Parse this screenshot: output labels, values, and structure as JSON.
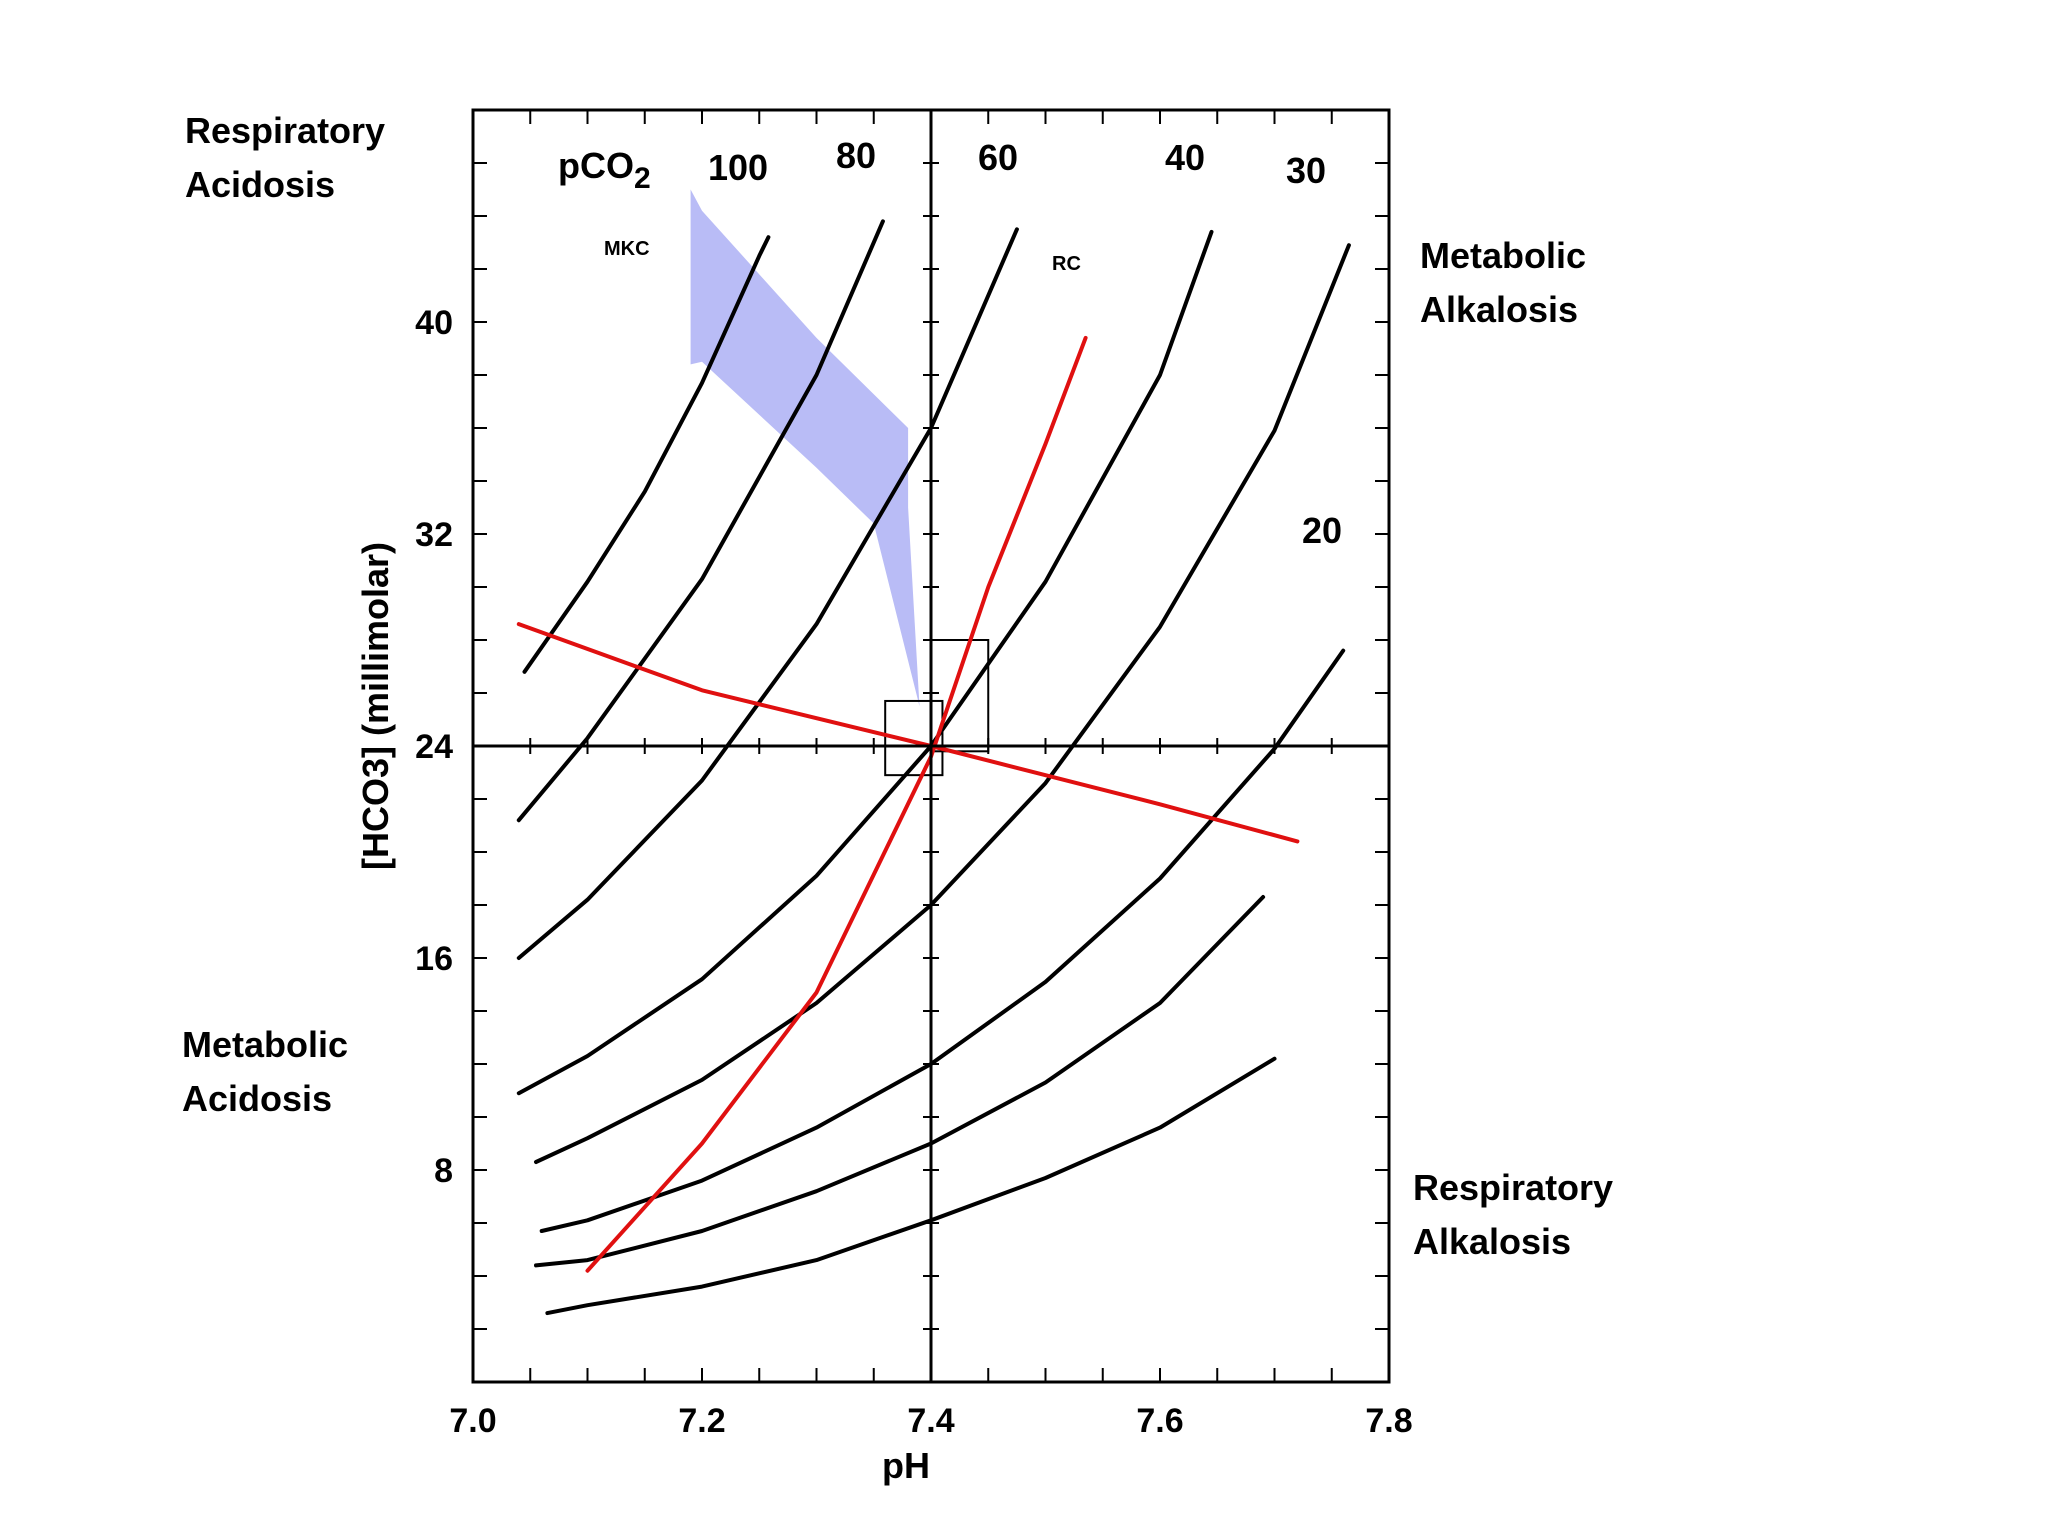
{
  "chart_data": {
    "type": "line",
    "xlabel": "pH",
    "ylabel": "[HCO3] (millimolar)",
    "xlim": [
      7.0,
      7.8
    ],
    "ylim": [
      0,
      48
    ],
    "x_ticks": [
      "7.0",
      "7.2",
      "7.4",
      "7.6",
      "7.8"
    ],
    "x_tick_values": [
      7.0,
      7.2,
      7.4,
      7.6,
      7.8
    ],
    "y_ticks": [
      "8",
      "16",
      "24",
      "32",
      "40"
    ],
    "y_tick_values": [
      8,
      16,
      24,
      32,
      40
    ],
    "reference_lines": {
      "x": 7.4,
      "y": 24
    },
    "pco2_title_main": "pCO",
    "pco2_title_sub": "2",
    "isobars": [
      {
        "name": "100",
        "points": [
          [
            7.045,
            26.8
          ],
          [
            7.1,
            30.2
          ],
          [
            7.15,
            33.6
          ],
          [
            7.2,
            37.7
          ],
          [
            7.25,
            42.5
          ],
          [
            7.258,
            43.2
          ]
        ]
      },
      {
        "name": "80",
        "points": [
          [
            7.04,
            21.2
          ],
          [
            7.1,
            24.3
          ],
          [
            7.2,
            30.3
          ],
          [
            7.3,
            38.0
          ],
          [
            7.358,
            43.8
          ]
        ]
      },
      {
        "name": "60",
        "points": [
          [
            7.04,
            16.0
          ],
          [
            7.1,
            18.2
          ],
          [
            7.2,
            22.7
          ],
          [
            7.3,
            28.6
          ],
          [
            7.4,
            36.0
          ],
          [
            7.475,
            43.5
          ]
        ]
      },
      {
        "name": "40",
        "points": [
          [
            7.04,
            10.9
          ],
          [
            7.1,
            12.3
          ],
          [
            7.2,
            15.2
          ],
          [
            7.3,
            19.1
          ],
          [
            7.4,
            24.0
          ],
          [
            7.5,
            30.2
          ],
          [
            7.6,
            38.0
          ],
          [
            7.645,
            43.4
          ]
        ]
      },
      {
        "name": "30",
        "points": [
          [
            7.055,
            8.3
          ],
          [
            7.1,
            9.2
          ],
          [
            7.2,
            11.4
          ],
          [
            7.3,
            14.3
          ],
          [
            7.4,
            18.0
          ],
          [
            7.5,
            22.6
          ],
          [
            7.6,
            28.5
          ],
          [
            7.7,
            35.9
          ],
          [
            7.765,
            42.9
          ]
        ]
      },
      {
        "name": "20",
        "points": [
          [
            7.06,
            5.7
          ],
          [
            7.1,
            6.1
          ],
          [
            7.2,
            7.6
          ],
          [
            7.3,
            9.6
          ],
          [
            7.4,
            12.0
          ],
          [
            7.5,
            15.1
          ],
          [
            7.6,
            19.0
          ],
          [
            7.7,
            23.9
          ],
          [
            7.76,
            27.6
          ]
        ]
      },
      {
        "name": "",
        "points": [
          [
            7.055,
            4.4
          ],
          [
            7.1,
            4.6
          ],
          [
            7.2,
            5.7
          ],
          [
            7.3,
            7.2
          ],
          [
            7.4,
            9.0
          ],
          [
            7.5,
            11.3
          ],
          [
            7.6,
            14.3
          ],
          [
            7.69,
            18.3
          ]
        ]
      },
      {
        "name": "",
        "points": [
          [
            7.065,
            2.6
          ],
          [
            7.1,
            2.9
          ],
          [
            7.2,
            3.6
          ],
          [
            7.3,
            4.6
          ],
          [
            7.4,
            6.1
          ],
          [
            7.5,
            7.7
          ],
          [
            7.6,
            9.6
          ],
          [
            7.7,
            12.2
          ]
        ]
      }
    ],
    "red_lines": [
      {
        "name": "",
        "points": [
          [
            7.04,
            28.6
          ],
          [
            7.2,
            26.1
          ],
          [
            7.4,
            24.0
          ],
          [
            7.6,
            21.8
          ],
          [
            7.72,
            20.4
          ]
        ]
      },
      {
        "name": "RC",
        "points": [
          [
            7.1,
            4.2
          ],
          [
            7.2,
            9.0
          ],
          [
            7.3,
            14.7
          ],
          [
            7.4,
            23.6
          ],
          [
            7.45,
            30.0
          ],
          [
            7.5,
            35.4
          ],
          [
            7.535,
            39.4
          ]
        ]
      }
    ],
    "shaded_band": {
      "label": "MKC",
      "color": "#b9bcf6",
      "upper": [
        [
          7.19,
          45.0
        ],
        [
          7.2,
          44.2
        ],
        [
          7.3,
          39.4
        ],
        [
          7.38,
          36.0
        ],
        [
          7.38,
          33.0
        ],
        [
          7.39,
          25.5
        ]
      ],
      "lower": [
        [
          7.39,
          25.5
        ],
        [
          7.35,
          32.4
        ],
        [
          7.3,
          34.5
        ],
        [
          7.2,
          38.5
        ],
        [
          7.19,
          38.4
        ]
      ]
    },
    "small_boxes": [
      {
        "x": [
          7.36,
          7.41
        ],
        "y": [
          22.9,
          25.7
        ]
      },
      {
        "x": [
          7.4,
          7.45
        ],
        "y": [
          23.8,
          28.0
        ]
      }
    ],
    "region_labels": {
      "respiratory_acidosis": [
        "Respiratory",
        "Acidosis"
      ],
      "metabolic_alkalosis": [
        "Metabolic",
        "Alkalosis"
      ],
      "metabolic_acidosis": [
        "Metabolic",
        "Acidosis"
      ],
      "respiratory_alkalosis": [
        "Respiratory",
        "Alkalosis"
      ]
    },
    "colors": {
      "isobar": "#000000",
      "red_line": "#e01010",
      "band": "#b9bcf6",
      "background": "#ffffff"
    },
    "grid": false
  }
}
